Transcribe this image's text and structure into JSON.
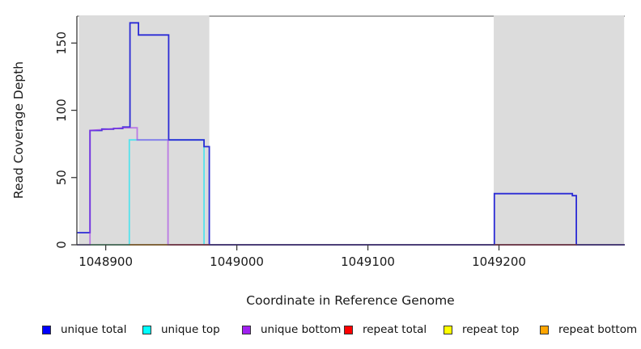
{
  "chart_data": {
    "type": "line",
    "title": "",
    "xlabel": "Coordinate in Reference Genome",
    "ylabel": "Read Coverage Depth",
    "xlim": [
      1048878,
      1049296
    ],
    "ylim": [
      0,
      170
    ],
    "x_ticks": [
      1048900,
      1049000,
      1049100,
      1049200
    ],
    "x_tick_labels": [
      "1048900",
      "1049000",
      "1049100",
      "1049200"
    ],
    "y_ticks": [
      0,
      50,
      100,
      150
    ],
    "y_tick_labels": [
      "0",
      "50",
      "100",
      "150"
    ],
    "grid": false,
    "legend_position": "bottom",
    "axis_color": "#3a3a3a",
    "top_border_color": "#8a8a8a",
    "shaded_regions": {
      "color": "#dcdcdc",
      "note": "repeat regions of reference genome",
      "ranges": [
        [
          1048879.5,
          1048979
        ],
        [
          1049196,
          1049295.5
        ]
      ]
    },
    "draw_order": [
      "unique top",
      "repeat top",
      "repeat bottom",
      "unique total",
      "unique bottom",
      "repeat total"
    ],
    "series": [
      {
        "name": "unique total",
        "legend_color": "#0000ff",
        "line_color": "#2b2bd5",
        "opacity": 1,
        "points": [
          [
            1048878,
            9
          ],
          [
            1048888,
            9
          ],
          [
            1048888,
            85
          ],
          [
            1048897,
            85
          ],
          [
            1048897,
            86
          ],
          [
            1048906,
            86
          ],
          [
            1048906,
            86.5
          ],
          [
            1048913,
            86.5
          ],
          [
            1048913,
            87.5
          ],
          [
            1048918.5,
            87.5
          ],
          [
            1048918.5,
            165
          ],
          [
            1048925,
            165
          ],
          [
            1048925,
            156
          ],
          [
            1048948,
            156
          ],
          [
            1048948,
            78
          ],
          [
            1048975,
            78
          ],
          [
            1048975,
            73
          ],
          [
            1048979,
            73
          ],
          [
            1048979,
            0
          ],
          [
            1049196.5,
            0
          ],
          [
            1049196.5,
            38
          ],
          [
            1049256,
            38
          ],
          [
            1049256,
            36.5
          ],
          [
            1049259,
            36.5
          ],
          [
            1049259,
            0
          ],
          [
            1049296,
            0
          ]
        ]
      },
      {
        "name": "unique top",
        "legend_color": "#00ffff",
        "line_color": "#55e2ec",
        "opacity": 1,
        "points": [
          [
            1048878,
            0
          ],
          [
            1048918,
            0
          ],
          [
            1048918,
            78
          ],
          [
            1048975,
            78
          ],
          [
            1048975,
            0
          ],
          [
            1049296,
            0
          ]
        ]
      },
      {
        "name": "unique bottom",
        "legend_color": "#a020f0",
        "line_color": "#a43be8",
        "opacity": 0.62,
        "points": [
          [
            1048878,
            0
          ],
          [
            1048888,
            0
          ],
          [
            1048888,
            85
          ],
          [
            1048903,
            86
          ],
          [
            1048913,
            87
          ],
          [
            1048924,
            87
          ],
          [
            1048924,
            78
          ],
          [
            1048947.5,
            78
          ],
          [
            1048947.5,
            0
          ],
          [
            1049296,
            0
          ]
        ]
      },
      {
        "name": "repeat total",
        "legend_color": "#ff0000",
        "line_color": "#e63b52",
        "opacity": 1,
        "segments": [
          [
            [
              1048949,
              0
            ],
            [
              1048979,
              0
            ]
          ],
          [
            [
              1049197,
              0
            ],
            [
              1049259,
              0
            ]
          ]
        ]
      },
      {
        "name": "repeat top",
        "legend_color": "#ffff00",
        "line_color": "#86d096",
        "opacity": 1,
        "segments": [
          [
            [
              1048878,
              0
            ],
            [
              1048918,
              0
            ]
          ]
        ]
      },
      {
        "name": "repeat bottom",
        "legend_color": "#ffa500",
        "line_color": "#ff9e0c",
        "opacity": 1,
        "segments": [
          [
            [
              1048918,
              0
            ],
            [
              1048949,
              0
            ]
          ]
        ]
      }
    ]
  },
  "legend": {
    "items": [
      {
        "label": "unique total",
        "color": "#0000ff"
      },
      {
        "label": "unique top",
        "color": "#00ffff"
      },
      {
        "label": "unique bottom",
        "color": "#a020f0"
      },
      {
        "label": "repeat total",
        "color": "#ff0000"
      },
      {
        "label": "repeat top",
        "color": "#ffff00"
      },
      {
        "label": "repeat bottom",
        "color": "#ffa500"
      }
    ]
  }
}
